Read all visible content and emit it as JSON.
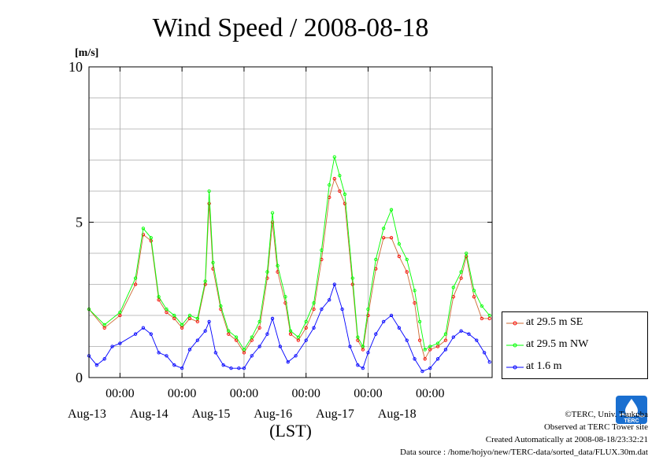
{
  "chart_data": {
    "type": "line",
    "title": "Wind Speed / 2008-08-18",
    "ylabel": "[m/s]",
    "xlabel": "(LST)",
    "ylim": [
      0,
      10
    ],
    "yticks": [
      0,
      5,
      10
    ],
    "xlim": [
      "2008-08-12 12:00",
      "2008-08-18 24:00"
    ],
    "xticks": [
      {
        "time": "2008-08-13 00:00",
        "label": "00:00",
        "date": "Aug-13"
      },
      {
        "time": "2008-08-14 00:00",
        "label": "00:00",
        "date": "Aug-14"
      },
      {
        "time": "2008-08-15 00:00",
        "label": "00:00",
        "date": "Aug-15"
      },
      {
        "time": "2008-08-16 00:00",
        "label": "00:00",
        "date": "Aug-16"
      },
      {
        "time": "2008-08-17 00:00",
        "label": "00:00",
        "date": "Aug-17"
      },
      {
        "time": "2008-08-18 00:00",
        "label": "00:00",
        "date": "Aug-18"
      }
    ],
    "grid": true,
    "legend": "right",
    "series": [
      {
        "name": "at 29.5 m SE",
        "color": "#ff0000",
        "points": [
          [
            "2008-08-12 12:00",
            2.2
          ],
          [
            "2008-08-12 18:00",
            1.6
          ],
          [
            "2008-08-13 00:00",
            2.0
          ],
          [
            "2008-08-13 06:00",
            3.0
          ],
          [
            "2008-08-13 09:00",
            4.6
          ],
          [
            "2008-08-13 12:00",
            4.4
          ],
          [
            "2008-08-13 15:00",
            2.5
          ],
          [
            "2008-08-13 18:00",
            2.1
          ],
          [
            "2008-08-13 21:00",
            1.9
          ],
          [
            "2008-08-14 00:00",
            1.6
          ],
          [
            "2008-08-14 03:00",
            1.9
          ],
          [
            "2008-08-14 06:00",
            1.8
          ],
          [
            "2008-08-14 09:00",
            3.0
          ],
          [
            "2008-08-14 10:30",
            5.6
          ],
          [
            "2008-08-14 12:00",
            3.5
          ],
          [
            "2008-08-14 15:00",
            2.2
          ],
          [
            "2008-08-14 18:00",
            1.4
          ],
          [
            "2008-08-14 21:00",
            1.2
          ],
          [
            "2008-08-15 00:00",
            0.8
          ],
          [
            "2008-08-15 03:00",
            1.2
          ],
          [
            "2008-08-15 06:00",
            1.6
          ],
          [
            "2008-08-15 09:00",
            3.2
          ],
          [
            "2008-08-15 11:00",
            5.0
          ],
          [
            "2008-08-15 13:00",
            3.4
          ],
          [
            "2008-08-15 16:00",
            2.4
          ],
          [
            "2008-08-15 18:00",
            1.4
          ],
          [
            "2008-08-15 21:00",
            1.2
          ],
          [
            "2008-08-16 00:00",
            1.6
          ],
          [
            "2008-08-16 03:00",
            2.2
          ],
          [
            "2008-08-16 06:00",
            3.8
          ],
          [
            "2008-08-16 09:00",
            5.8
          ],
          [
            "2008-08-16 11:00",
            6.4
          ],
          [
            "2008-08-16 13:00",
            6.0
          ],
          [
            "2008-08-16 15:00",
            5.6
          ],
          [
            "2008-08-16 18:00",
            3.0
          ],
          [
            "2008-08-16 20:00",
            1.2
          ],
          [
            "2008-08-16 22:00",
            0.9
          ],
          [
            "2008-08-17 00:00",
            2.0
          ],
          [
            "2008-08-17 03:00",
            3.5
          ],
          [
            "2008-08-17 06:00",
            4.5
          ],
          [
            "2008-08-17 09:00",
            4.5
          ],
          [
            "2008-08-17 12:00",
            3.9
          ],
          [
            "2008-08-17 15:00",
            3.4
          ],
          [
            "2008-08-17 18:00",
            2.4
          ],
          [
            "2008-08-17 20:00",
            1.2
          ],
          [
            "2008-08-17 22:00",
            0.6
          ],
          [
            "2008-08-18 00:00",
            0.9
          ],
          [
            "2008-08-18 03:00",
            1.0
          ],
          [
            "2008-08-18 06:00",
            1.2
          ],
          [
            "2008-08-18 09:00",
            2.6
          ],
          [
            "2008-08-18 12:00",
            3.2
          ],
          [
            "2008-08-18 14:00",
            3.9
          ],
          [
            "2008-08-18 17:00",
            2.6
          ],
          [
            "2008-08-18 20:00",
            1.9
          ],
          [
            "2008-08-18 23:00",
            1.9
          ]
        ]
      },
      {
        "name": "at 29.5 m NW",
        "color": "#00ff00",
        "points": [
          [
            "2008-08-12 12:00",
            2.2
          ],
          [
            "2008-08-12 18:00",
            1.7
          ],
          [
            "2008-08-13 00:00",
            2.1
          ],
          [
            "2008-08-13 06:00",
            3.2
          ],
          [
            "2008-08-13 09:00",
            4.8
          ],
          [
            "2008-08-13 12:00",
            4.5
          ],
          [
            "2008-08-13 15:00",
            2.6
          ],
          [
            "2008-08-13 18:00",
            2.2
          ],
          [
            "2008-08-13 21:00",
            2.0
          ],
          [
            "2008-08-14 00:00",
            1.7
          ],
          [
            "2008-08-14 03:00",
            2.0
          ],
          [
            "2008-08-14 06:00",
            1.9
          ],
          [
            "2008-08-14 09:00",
            3.1
          ],
          [
            "2008-08-14 10:30",
            6.0
          ],
          [
            "2008-08-14 12:00",
            3.7
          ],
          [
            "2008-08-14 15:00",
            2.3
          ],
          [
            "2008-08-14 18:00",
            1.5
          ],
          [
            "2008-08-14 21:00",
            1.3
          ],
          [
            "2008-08-15 00:00",
            0.9
          ],
          [
            "2008-08-15 03:00",
            1.3
          ],
          [
            "2008-08-15 06:00",
            1.8
          ],
          [
            "2008-08-15 09:00",
            3.4
          ],
          [
            "2008-08-15 11:00",
            5.3
          ],
          [
            "2008-08-15 13:00",
            3.6
          ],
          [
            "2008-08-15 16:00",
            2.6
          ],
          [
            "2008-08-15 18:00",
            1.5
          ],
          [
            "2008-08-15 21:00",
            1.3
          ],
          [
            "2008-08-16 00:00",
            1.8
          ],
          [
            "2008-08-16 03:00",
            2.4
          ],
          [
            "2008-08-16 06:00",
            4.1
          ],
          [
            "2008-08-16 09:00",
            6.2
          ],
          [
            "2008-08-16 11:00",
            7.1
          ],
          [
            "2008-08-16 13:00",
            6.5
          ],
          [
            "2008-08-16 15:00",
            5.9
          ],
          [
            "2008-08-16 18:00",
            3.2
          ],
          [
            "2008-08-16 20:00",
            1.3
          ],
          [
            "2008-08-16 22:00",
            1.0
          ],
          [
            "2008-08-17 00:00",
            2.2
          ],
          [
            "2008-08-17 03:00",
            3.8
          ],
          [
            "2008-08-17 06:00",
            4.8
          ],
          [
            "2008-08-17 09:00",
            5.4
          ],
          [
            "2008-08-17 12:00",
            4.3
          ],
          [
            "2008-08-17 15:00",
            3.8
          ],
          [
            "2008-08-17 18:00",
            2.8
          ],
          [
            "2008-08-17 20:00",
            1.8
          ],
          [
            "2008-08-17 22:00",
            0.9
          ],
          [
            "2008-08-18 00:00",
            1.0
          ],
          [
            "2008-08-18 03:00",
            1.1
          ],
          [
            "2008-08-18 06:00",
            1.4
          ],
          [
            "2008-08-18 09:00",
            2.9
          ],
          [
            "2008-08-18 12:00",
            3.4
          ],
          [
            "2008-08-18 14:00",
            4.0
          ],
          [
            "2008-08-18 17:00",
            2.8
          ],
          [
            "2008-08-18 20:00",
            2.3
          ],
          [
            "2008-08-18 23:00",
            2.0
          ]
        ]
      },
      {
        "name": "at 1.6 m",
        "color": "#0000ff",
        "points": [
          [
            "2008-08-12 12:00",
            0.7
          ],
          [
            "2008-08-12 15:00",
            0.4
          ],
          [
            "2008-08-12 18:00",
            0.6
          ],
          [
            "2008-08-12 21:00",
            1.0
          ],
          [
            "2008-08-13 00:00",
            1.1
          ],
          [
            "2008-08-13 06:00",
            1.4
          ],
          [
            "2008-08-13 09:00",
            1.6
          ],
          [
            "2008-08-13 12:00",
            1.4
          ],
          [
            "2008-08-13 15:00",
            0.8
          ],
          [
            "2008-08-13 18:00",
            0.7
          ],
          [
            "2008-08-13 21:00",
            0.4
          ],
          [
            "2008-08-14 00:00",
            0.3
          ],
          [
            "2008-08-14 03:00",
            0.9
          ],
          [
            "2008-08-14 06:00",
            1.2
          ],
          [
            "2008-08-14 09:00",
            1.5
          ],
          [
            "2008-08-14 10:30",
            1.8
          ],
          [
            "2008-08-14 13:00",
            0.8
          ],
          [
            "2008-08-14 16:00",
            0.4
          ],
          [
            "2008-08-14 19:00",
            0.3
          ],
          [
            "2008-08-14 22:00",
            0.3
          ],
          [
            "2008-08-15 00:00",
            0.3
          ],
          [
            "2008-08-15 03:00",
            0.7
          ],
          [
            "2008-08-15 06:00",
            1.0
          ],
          [
            "2008-08-15 09:00",
            1.4
          ],
          [
            "2008-08-15 11:00",
            1.9
          ],
          [
            "2008-08-15 14:00",
            1.0
          ],
          [
            "2008-08-15 17:00",
            0.5
          ],
          [
            "2008-08-15 20:00",
            0.7
          ],
          [
            "2008-08-16 00:00",
            1.2
          ],
          [
            "2008-08-16 03:00",
            1.6
          ],
          [
            "2008-08-16 06:00",
            2.2
          ],
          [
            "2008-08-16 09:00",
            2.5
          ],
          [
            "2008-08-16 11:00",
            3.0
          ],
          [
            "2008-08-16 14:00",
            2.2
          ],
          [
            "2008-08-16 17:00",
            1.0
          ],
          [
            "2008-08-16 20:00",
            0.4
          ],
          [
            "2008-08-16 22:00",
            0.3
          ],
          [
            "2008-08-17 00:00",
            0.8
          ],
          [
            "2008-08-17 03:00",
            1.4
          ],
          [
            "2008-08-17 06:00",
            1.8
          ],
          [
            "2008-08-17 09:00",
            2.0
          ],
          [
            "2008-08-17 12:00",
            1.6
          ],
          [
            "2008-08-17 15:00",
            1.2
          ],
          [
            "2008-08-17 18:00",
            0.6
          ],
          [
            "2008-08-17 21:00",
            0.2
          ],
          [
            "2008-08-18 00:00",
            0.3
          ],
          [
            "2008-08-18 03:00",
            0.6
          ],
          [
            "2008-08-18 06:00",
            0.9
          ],
          [
            "2008-08-18 09:00",
            1.3
          ],
          [
            "2008-08-18 12:00",
            1.5
          ],
          [
            "2008-08-18 15:00",
            1.4
          ],
          [
            "2008-08-18 18:00",
            1.2
          ],
          [
            "2008-08-18 21:00",
            0.8
          ],
          [
            "2008-08-18 23:00",
            0.5
          ]
        ]
      }
    ]
  },
  "credits": {
    "copyright": "©TERC, Univ. Tsukuba",
    "observed": "Observed at TERC Tower site",
    "created": "Created Automatically at 2008-08-18/23:32:21",
    "source": "Data source : /home/hojyo/new/TERC-data/sorted_data/FLUX.30m.dat"
  },
  "logo": {
    "text": "TERC",
    "color": "#1a6fd0"
  }
}
